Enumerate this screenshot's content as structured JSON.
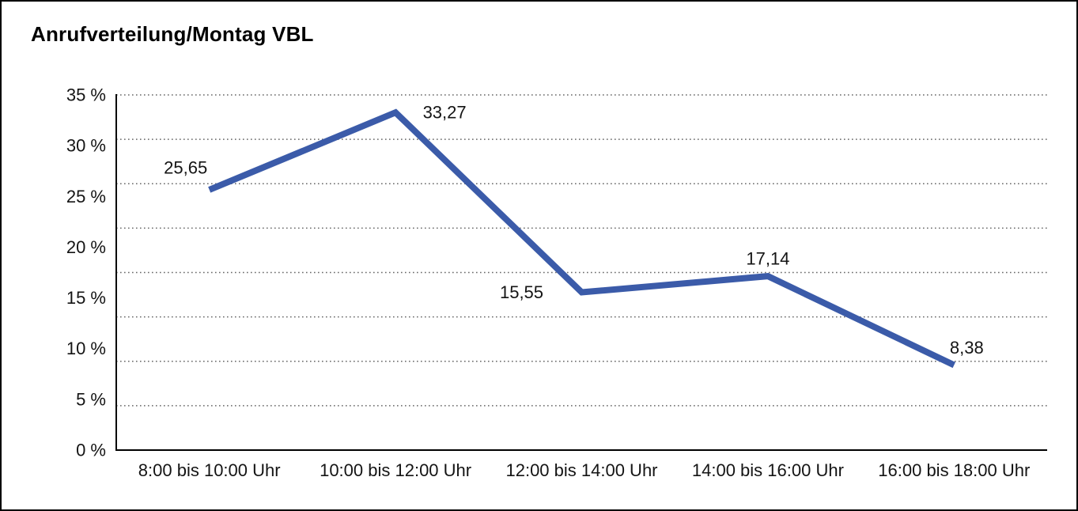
{
  "title": "Anrufverteilung/Montag VBL",
  "chart_data": {
    "type": "line",
    "title": "Anrufverteilung/Montag VBL",
    "categories": [
      "8:00 bis 10:00 Uhr",
      "10:00 bis 12:00 Uhr",
      "12:00 bis 14:00 Uhr",
      "14:00 bis 16:00 Uhr",
      "16:00 bis 18:00 Uhr"
    ],
    "values": [
      25.65,
      33.27,
      15.55,
      17.14,
      8.38
    ],
    "value_labels": [
      "25,65",
      "33,27",
      "15,55",
      "17,14",
      "8,38"
    ],
    "unit": "%",
    "ylim": [
      0,
      35
    ],
    "ytick_step": 5,
    "ytick_labels": [
      "35 %",
      "30 %",
      "25 %",
      "20 %",
      "15 %",
      "10 %",
      "5 %",
      "0 %"
    ],
    "gridline_count": 9,
    "grid": "horizontal-dotted",
    "legend": "none",
    "colors": {
      "line": "#3B5BA9",
      "grid_dots": "#666666",
      "axis": "#000000",
      "text": "#141414",
      "background": "#FFFFFF"
    }
  }
}
